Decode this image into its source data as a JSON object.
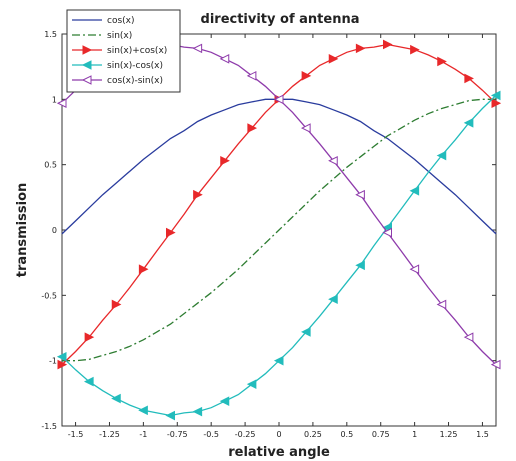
{
  "chart_data": {
    "type": "line",
    "title": "directivity of antenna",
    "xlabel": "relative angle",
    "ylabel": "transmission",
    "xlim": [
      -1.6,
      1.6
    ],
    "ylim": [
      -1.5,
      1.5
    ],
    "xticks": [
      -1.5,
      -1.25,
      -1,
      -0.75,
      -0.5,
      -0.25,
      0,
      0.25,
      0.5,
      0.75,
      1,
      1.25,
      1.5
    ],
    "xtick_labels": [
      "-1.5",
      "-1.25",
      "-1",
      "-0.75",
      "-0.5",
      "-0.25",
      "0",
      "0.25",
      "0.5",
      "0.75",
      "1",
      "1.25",
      "1.5"
    ],
    "yticks": [
      -1.5,
      -1,
      -0.5,
      0,
      0.5,
      1,
      1.5
    ],
    "ytick_labels": [
      "-1.5",
      "-1",
      "-0.5",
      "0",
      "0.5",
      "1",
      "1.5"
    ],
    "grid": false,
    "legend_position": "top-left",
    "x": [
      -1.6,
      -1.5,
      -1.4,
      -1.3,
      -1.2,
      -1.1,
      -1.0,
      -0.9,
      -0.8,
      -0.7,
      -0.6,
      -0.5,
      -0.4,
      -0.3,
      -0.2,
      -0.1,
      0.0,
      0.1,
      0.2,
      0.3,
      0.4,
      0.5,
      0.6,
      0.7,
      0.8,
      0.9,
      1.0,
      1.1,
      1.2,
      1.3,
      1.4,
      1.5,
      1.6
    ],
    "series": [
      {
        "name": "cos(x)",
        "color": "#2a3c9e",
        "dash": "solid",
        "marker": "none",
        "values": [
          -0.03,
          0.07,
          0.17,
          0.27,
          0.36,
          0.45,
          0.54,
          0.62,
          0.7,
          0.76,
          0.83,
          0.88,
          0.92,
          0.96,
          0.98,
          1.0,
          1.0,
          1.0,
          0.98,
          0.96,
          0.92,
          0.88,
          0.83,
          0.76,
          0.7,
          0.62,
          0.54,
          0.45,
          0.36,
          0.27,
          0.17,
          0.07,
          -0.03
        ]
      },
      {
        "name": "sin(x)",
        "color": "#2e7d32",
        "dash": "dashdot",
        "marker": "none",
        "values": [
          -1.0,
          -1.0,
          -0.99,
          -0.96,
          -0.93,
          -0.89,
          -0.84,
          -0.78,
          -0.72,
          -0.64,
          -0.56,
          -0.48,
          -0.39,
          -0.3,
          -0.2,
          -0.1,
          0.0,
          0.1,
          0.2,
          0.3,
          0.39,
          0.48,
          0.56,
          0.64,
          0.72,
          0.78,
          0.84,
          0.89,
          0.93,
          0.96,
          0.99,
          1.0,
          1.0
        ]
      },
      {
        "name": "sin(x)+cos(x)",
        "color": "#e8282a",
        "dash": "solid",
        "marker": "triangle-right",
        "values": [
          -1.03,
          -0.93,
          -0.82,
          -0.69,
          -0.57,
          -0.44,
          -0.3,
          -0.16,
          -0.02,
          0.12,
          0.27,
          0.4,
          0.53,
          0.66,
          0.78,
          0.9,
          1.0,
          1.1,
          1.18,
          1.26,
          1.31,
          1.36,
          1.39,
          1.4,
          1.42,
          1.4,
          1.38,
          1.34,
          1.29,
          1.23,
          1.16,
          1.07,
          0.97
        ]
      },
      {
        "name": "sin(x)-cos(x)",
        "color": "#22bcbc",
        "dash": "solid",
        "marker": "triangle-left",
        "values": [
          -0.97,
          -1.07,
          -1.16,
          -1.23,
          -1.29,
          -1.34,
          -1.38,
          -1.4,
          -1.42,
          -1.4,
          -1.39,
          -1.36,
          -1.31,
          -1.26,
          -1.18,
          -1.1,
          -1.0,
          -0.9,
          -0.78,
          -0.66,
          -0.53,
          -0.4,
          -0.27,
          -0.12,
          0.02,
          0.16,
          0.3,
          0.44,
          0.57,
          0.69,
          0.82,
          0.93,
          1.03
        ]
      },
      {
        "name": "cos(x)-sin(x)",
        "color": "#8e3bab",
        "dash": "solid",
        "marker": "triangle-left-open",
        "values": [
          0.97,
          1.07,
          1.16,
          1.23,
          1.29,
          1.34,
          1.38,
          1.4,
          1.42,
          1.4,
          1.39,
          1.36,
          1.31,
          1.26,
          1.18,
          1.1,
          1.0,
          0.9,
          0.78,
          0.66,
          0.53,
          0.4,
          0.27,
          0.12,
          -0.02,
          -0.16,
          -0.3,
          -0.44,
          -0.57,
          -0.69,
          -0.82,
          -0.93,
          -1.03
        ]
      }
    ]
  }
}
